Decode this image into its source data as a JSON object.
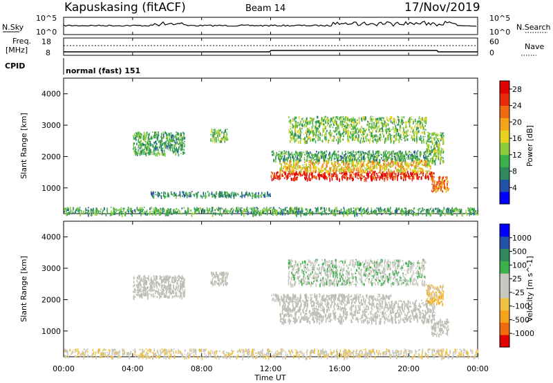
{
  "header": {
    "title": "Kapuskasing (fitACF)",
    "beam": "Beam 14",
    "date": "17/Nov/2019"
  },
  "panels": {
    "nsky_label": "N.Sky",
    "nsky_ticks": [
      "10^5",
      "10^0"
    ],
    "nsearch_label": "N.Search",
    "nsearch_ticks": [
      "10^5",
      "10^0"
    ],
    "freq_label_1": "Freq.",
    "freq_label_2": "[MHz]",
    "freq_ticks": [
      "18",
      "8"
    ],
    "nave_label": "Nave",
    "nave_ticks": [
      "60",
      "0"
    ],
    "cpid_label": "CPID",
    "cpid_value": "normal (fast) 151"
  },
  "colors": {
    "power_scale": [
      "#0000ff",
      "#2451a8",
      "#2e8a5a",
      "#3cb04a",
      "#8dcc3a",
      "#e8d21e",
      "#f5a31a",
      "#f06a10",
      "#e82a0a",
      "#e00000"
    ],
    "velocity_scale": [
      "#e00000",
      "#f06a10",
      "#f5a31a",
      "#f0c040",
      "#c8c8c0",
      "#c8c8c0",
      "#3cb04a",
      "#2e8a5a",
      "#2451a8",
      "#0000ff"
    ],
    "ground_scatter": "#bdbdb5"
  },
  "chart_data": [
    {
      "type": "heatmap",
      "name": "power",
      "xlabel": "Time UT",
      "ylabel": "Slant Range [km]",
      "x_ticks": [
        "00:00",
        "04:00",
        "08:00",
        "12:00",
        "16:00",
        "20:00",
        "00:00"
      ],
      "y_ticks": [
        "1000",
        "2000",
        "3000",
        "4000"
      ],
      "xlim_hours": [
        0,
        24
      ],
      "ylim_km": [
        180,
        4500
      ],
      "colorbar": {
        "label": "Power [dB]",
        "ticks": [
          "4",
          "8",
          "12",
          "16",
          "20",
          "24",
          "28"
        ],
        "range": [
          0,
          30
        ]
      },
      "echo_regions": [
        {
          "t0": 12.0,
          "t1": 21.5,
          "r0": 1300,
          "r1": 1550,
          "level": 26
        },
        {
          "t0": 12.5,
          "t1": 21.3,
          "r0": 1550,
          "r1": 1900,
          "level": 18
        },
        {
          "t0": 12.0,
          "t1": 21.0,
          "r0": 1900,
          "r1": 2200,
          "level": 10
        },
        {
          "t0": 21.3,
          "t1": 22.3,
          "r0": 900,
          "r1": 1400,
          "level": 22
        },
        {
          "t0": 21.0,
          "t1": 22.0,
          "r0": 1800,
          "r1": 2800,
          "level": 12
        },
        {
          "t0": 4.0,
          "t1": 7.0,
          "r0": 2100,
          "r1": 2800,
          "level": 10
        },
        {
          "t0": 8.5,
          "t1": 9.5,
          "r0": 2500,
          "r1": 2900,
          "level": 12
        },
        {
          "t0": 5.0,
          "t1": 12.0,
          "r0": 750,
          "r1": 900,
          "level": 8
        },
        {
          "t0": 13.0,
          "t1": 21.0,
          "r0": 2500,
          "r1": 3300,
          "level": 12
        },
        {
          "t0": 0.0,
          "t1": 24.0,
          "r0": 180,
          "r1": 400,
          "level": 10
        }
      ]
    },
    {
      "type": "heatmap",
      "name": "velocity",
      "xlabel": "Time UT",
      "ylabel": "Slant Range [km]",
      "x_ticks": [
        "00:00",
        "04:00",
        "08:00",
        "12:00",
        "16:00",
        "20:00",
        "00:00"
      ],
      "y_ticks": [
        "1000",
        "2000",
        "3000",
        "4000"
      ],
      "xlim_hours": [
        0,
        24
      ],
      "ylim_km": [
        180,
        4500
      ],
      "colorbar": {
        "label": "Velocity [m s^-1]",
        "ticks": [
          "1000",
          "500",
          "100",
          "25",
          "-25",
          "-100",
          "-500",
          "-1000"
        ],
        "range": [
          -1000,
          1000
        ]
      },
      "echo_regions": [
        {
          "t0": 12.5,
          "t1": 21.5,
          "r0": 1300,
          "r1": 2000,
          "level": 0,
          "ground": true
        },
        {
          "t0": 12.0,
          "t1": 19.0,
          "r0": 2000,
          "r1": 2200,
          "level": 0,
          "ground": true
        },
        {
          "t0": 21.3,
          "t1": 22.3,
          "r0": 900,
          "r1": 1400,
          "level": 0,
          "ground": true
        },
        {
          "t0": 21.0,
          "t1": 22.0,
          "r0": 1900,
          "r1": 2500,
          "level": -300
        },
        {
          "t0": 4.0,
          "t1": 7.0,
          "r0": 2100,
          "r1": 2800,
          "level": 0,
          "ground": true
        },
        {
          "t0": 8.5,
          "t1": 9.5,
          "r0": 2500,
          "r1": 2900,
          "level": 0,
          "ground": true
        },
        {
          "t0": 13.0,
          "t1": 21.0,
          "r0": 2500,
          "r1": 3300,
          "level": 100
        },
        {
          "t0": 0.0,
          "t1": 24.0,
          "r0": 180,
          "r1": 450,
          "level": -150
        }
      ]
    }
  ]
}
